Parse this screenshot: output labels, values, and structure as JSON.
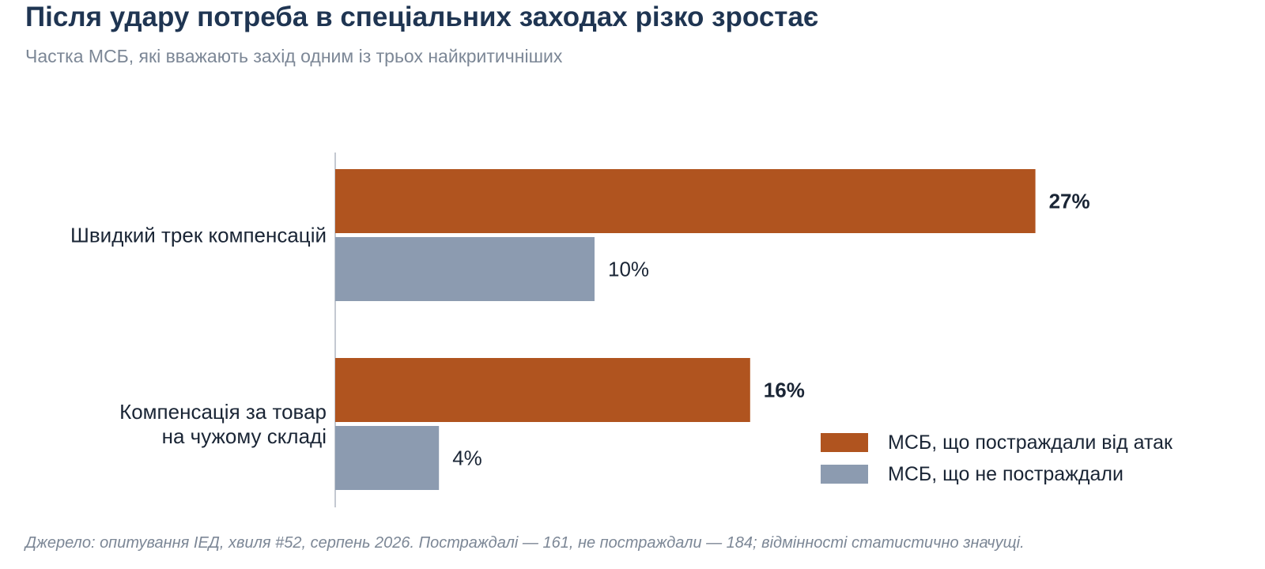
{
  "title": "Після удару потреба в спеціальних заходах різко зростає",
  "subtitle": "Частка МСБ, які вважають захід одним із трьох найкритичніших",
  "source": "Джерело: опитування ІЕД, хвиля #52, серпень 2026. Постраждалі — 161, не постраждали — 184; відмінності статистично значущі.",
  "colors": {
    "affected": "#b0541f",
    "not_affected": "#8c9bb0",
    "axis": "#c4c9d1",
    "text": "#1a2535"
  },
  "legend": [
    {
      "label": "МСБ, що постраждали від атак",
      "color": "#b0541f"
    },
    {
      "label": "МСБ, що не постраждали",
      "color": "#8c9bb0"
    }
  ],
  "chart_data": {
    "type": "bar",
    "orientation": "horizontal",
    "categories": [
      [
        "Швидкий трек компенсацій"
      ],
      [
        "Компенсація за товар",
        "на чужому складі"
      ]
    ],
    "series": [
      {
        "name": "МСБ, що постраждали від атак",
        "values": [
          27,
          16
        ],
        "labels": [
          "27%",
          "16%"
        ],
        "color": "#b0541f",
        "label_bold": true
      },
      {
        "name": "МСБ, що не постраждали",
        "values": [
          10,
          4
        ],
        "labels": [
          "10%",
          "4%"
        ],
        "color": "#8c9bb0",
        "label_bold": false
      }
    ],
    "xlim": [
      0,
      30
    ],
    "unit": "%",
    "grid": false,
    "legend_position": "bottom-right"
  }
}
